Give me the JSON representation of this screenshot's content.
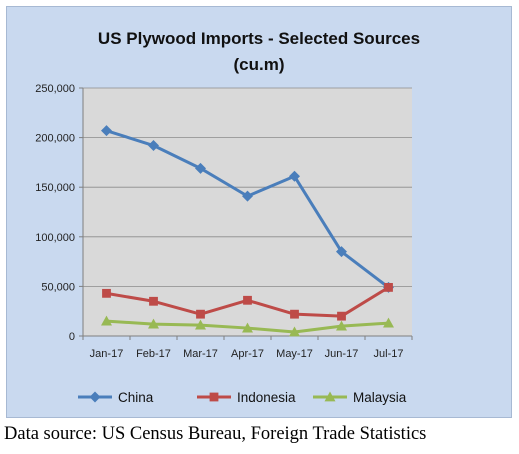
{
  "chart_data": {
    "type": "line",
    "title": [
      "US Plywood Imports - Selected Sources",
      "(cu.m)"
    ],
    "categories": [
      "Jan-17",
      "Feb-17",
      "Mar-17",
      "Apr-17",
      "May-17",
      "Jun-17",
      "Jul-17"
    ],
    "ylim": [
      0,
      250000
    ],
    "yticks": [
      0,
      50000,
      100000,
      150000,
      200000,
      250000
    ],
    "ytick_labels": [
      "0",
      "50,000",
      "100,000",
      "150,000",
      "200,000",
      "250,000"
    ],
    "grid": true,
    "legend_position": "bottom",
    "series": [
      {
        "name": "China",
        "color": "#4a7ebb",
        "marker": "diamond",
        "values": [
          207000,
          192000,
          169000,
          141000,
          161000,
          85000,
          49000
        ]
      },
      {
        "name": "Indonesia",
        "color": "#be4b48",
        "marker": "square",
        "values": [
          43000,
          35000,
          22000,
          36000,
          22000,
          20000,
          49000
        ]
      },
      {
        "name": "Malaysia",
        "color": "#98b954",
        "marker": "triangle",
        "values": [
          15000,
          12000,
          11000,
          8000,
          4000,
          10000,
          13000
        ]
      }
    ]
  },
  "caption": "Data source:  US Census Bureau, Foreign Trade Statistics"
}
